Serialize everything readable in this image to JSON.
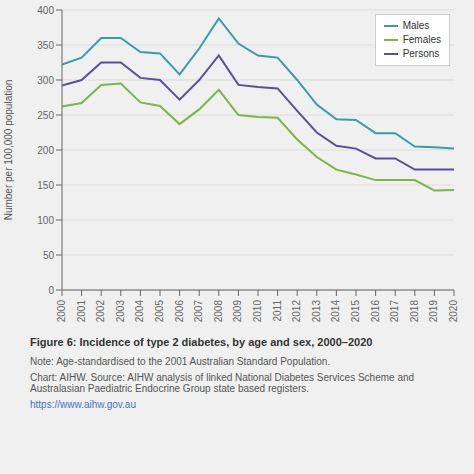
{
  "chart_data": {
    "type": "line",
    "caption": "Figure 6: Incidence of type 2 diabetes, by age and sex, 2000–2020",
    "notes": [
      "Note: Age-standardised to the 2001 Australian Standard Population.",
      "Chart: AIHW. Source: AIHW analysis of linked National Diabetes Services Scheme and Australasian Paediatric Endocrine Group state based registers.",
      "https://www.aihw.gov.au"
    ],
    "y_label": "Number per 100,000 population",
    "x": [
      2000,
      2001,
      2002,
      2003,
      2004,
      2005,
      2006,
      2007,
      2008,
      2009,
      2010,
      2011,
      2012,
      2013,
      2014,
      2015,
      2016,
      2017,
      2018,
      2019,
      2020
    ],
    "xlim": [
      2000,
      2020
    ],
    "xticks": [
      2000,
      2001,
      2002,
      2003,
      2004,
      2005,
      2006,
      2007,
      2008,
      2009,
      2010,
      2011,
      2012,
      2013,
      2014,
      2015,
      2016,
      2017,
      2018,
      2019,
      2020
    ],
    "series": [
      {
        "name": "Males",
        "color": "#3a9bad",
        "values": [
          322,
          332,
          360,
          360,
          340,
          338,
          308,
          345,
          388,
          352,
          335,
          332,
          300,
          265,
          244,
          243,
          224,
          224,
          205,
          204,
          202
        ]
      },
      {
        "name": "Females",
        "color": "#7ab648",
        "values": [
          262,
          267,
          293,
          295,
          268,
          263,
          237,
          258,
          286,
          250,
          247,
          246,
          215,
          190,
          172,
          165,
          157,
          157,
          157,
          142,
          143
        ]
      },
      {
        "name": "Persons",
        "color": "#5b4e9e",
        "values": [
          292,
          300,
          325,
          325,
          303,
          300,
          272,
          300,
          335,
          293,
          290,
          288,
          256,
          225,
          206,
          202,
          188,
          188,
          172,
          172,
          172
        ]
      }
    ],
    "ylim": [
      0,
      400
    ],
    "yticks": [
      0,
      50,
      100,
      150,
      200,
      250,
      300,
      350,
      400
    ],
    "grid": true,
    "legend": "upper right"
  }
}
